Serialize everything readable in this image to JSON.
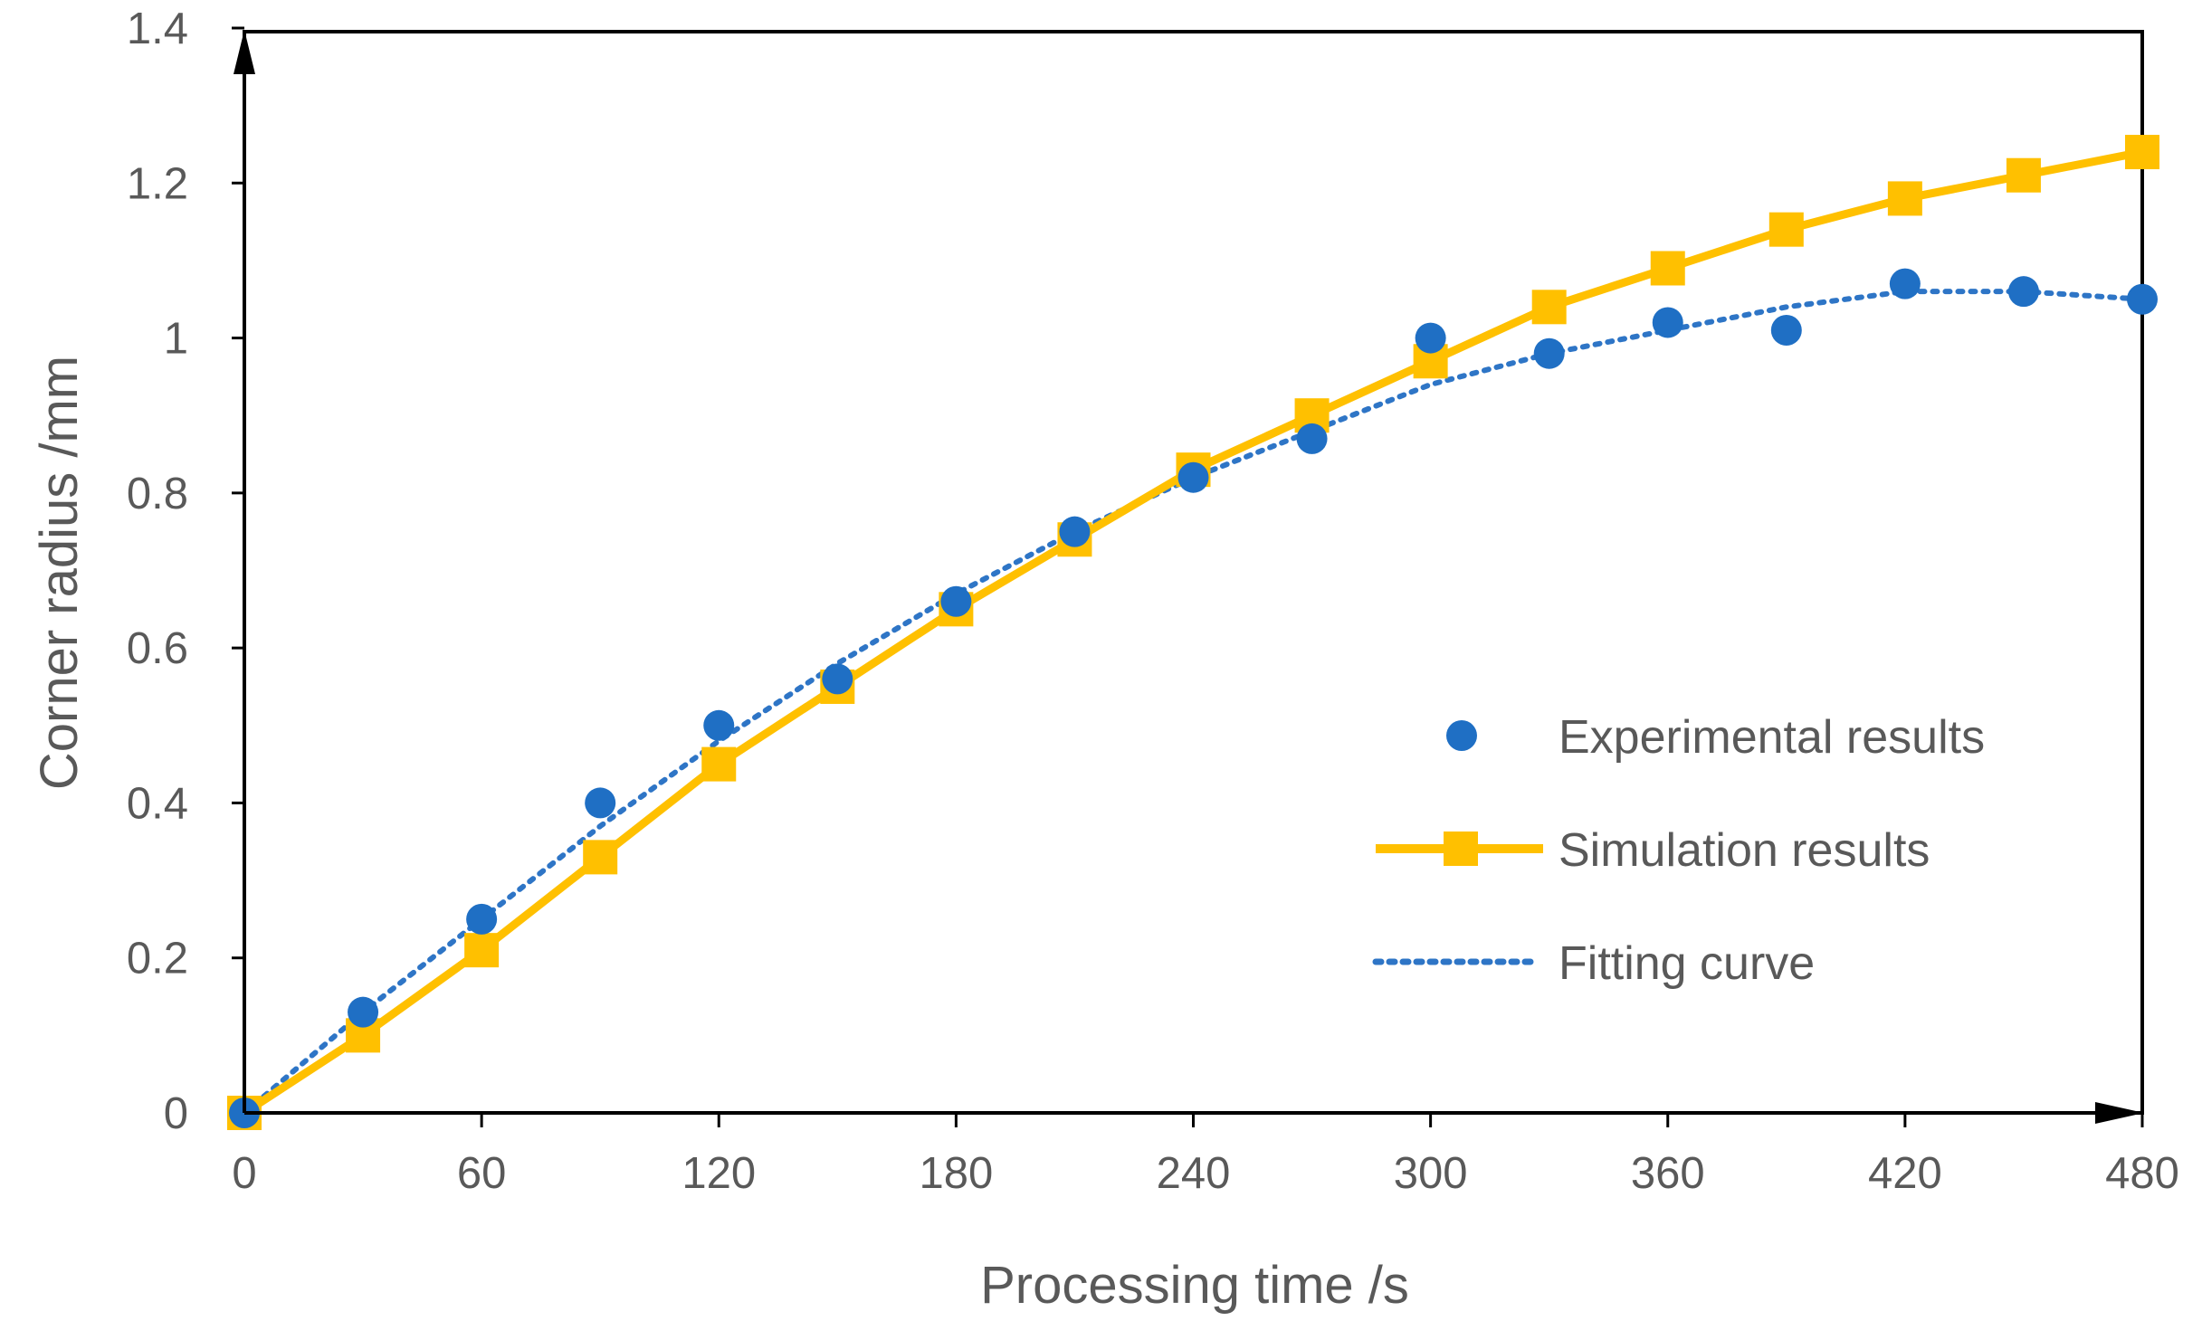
{
  "chart_data": {
    "type": "line",
    "title": "",
    "xlabel": "Processing time /s",
    "ylabel": "Corner radius /mm",
    "xlim": [
      0,
      480
    ],
    "ylim": [
      0,
      1.4
    ],
    "x_ticks": [
      "0",
      "60",
      "120",
      "180",
      "240",
      "300",
      "360",
      "420",
      "480"
    ],
    "y_ticks": [
      "0",
      "0.2",
      "0.4",
      "0.6",
      "0.8",
      "1",
      "1.2",
      "1.4"
    ],
    "grid": false,
    "legend_position": "center-right",
    "colors": {
      "experimental": "#1f6fc4",
      "simulation": "#ffc000",
      "fitting": "#2e75c6",
      "axis": "#000000"
    },
    "series": [
      {
        "name": "Experimental results",
        "style": "markers-circle",
        "x": [
          0,
          30,
          60,
          90,
          120,
          150,
          180,
          210,
          240,
          270,
          300,
          330,
          360,
          390,
          420,
          450,
          480
        ],
        "values": [
          0,
          0.13,
          0.25,
          0.4,
          0.5,
          0.56,
          0.66,
          0.75,
          0.82,
          0.87,
          1.0,
          0.98,
          1.02,
          1.01,
          1.07,
          1.06,
          1.05
        ]
      },
      {
        "name": "Simulation results",
        "style": "line-square",
        "x": [
          0,
          30,
          60,
          90,
          120,
          150,
          180,
          210,
          240,
          270,
          300,
          330,
          360,
          390,
          420,
          450,
          480
        ],
        "values": [
          0,
          0.1,
          0.21,
          0.33,
          0.45,
          0.55,
          0.65,
          0.74,
          0.83,
          0.9,
          0.97,
          1.04,
          1.09,
          1.14,
          1.18,
          1.21,
          1.24
        ]
      },
      {
        "name": "Fitting curve",
        "style": "dotted-line",
        "x": [
          0,
          30,
          60,
          90,
          120,
          150,
          180,
          210,
          240,
          270,
          300,
          330,
          360,
          390,
          420,
          450,
          480
        ],
        "values": [
          0,
          0.13,
          0.25,
          0.37,
          0.48,
          0.58,
          0.67,
          0.75,
          0.82,
          0.88,
          0.94,
          0.98,
          1.01,
          1.04,
          1.06,
          1.06,
          1.05
        ]
      }
    ]
  }
}
